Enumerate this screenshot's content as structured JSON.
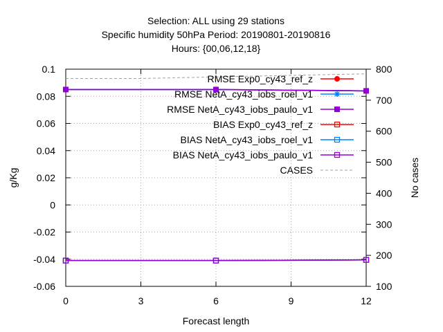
{
  "chart_data": {
    "type": "line",
    "title_lines": [
      "Selection: ALL using    29 stations",
      "Specific humidity 50hPa   Period: 20190801-20190816",
      "Hours: {00,06,12,18}"
    ],
    "xlabel": "Forecast length",
    "ylabel": "g/Kg",
    "y2label": "No cases",
    "xlim": [
      0,
      12
    ],
    "ylim": [
      -0.06,
      0.1
    ],
    "y2lim": [
      100,
      800
    ],
    "xticks": [
      0,
      3,
      6,
      9,
      12
    ],
    "yticks": [
      -0.06,
      -0.04,
      -0.02,
      0,
      0.02,
      0.04,
      0.06,
      0.08,
      0.1
    ],
    "ytick_labels": [
      "-0.06",
      "-0.04",
      "-0.02",
      "0",
      "0.02",
      "0.04",
      "0.06",
      "0.08",
      "0.1"
    ],
    "y2ticks": [
      100,
      200,
      300,
      400,
      500,
      600,
      700,
      800
    ],
    "grid": true,
    "legend_position": "top-right",
    "x": [
      0,
      6,
      12
    ],
    "series": [
      {
        "name": "RMSE Exp0_cy43_ref_z",
        "axis": "y",
        "values": [
          0.085,
          0.085,
          0.084
        ],
        "color": "#ff0000",
        "marker": "filled-circle",
        "dash": "none"
      },
      {
        "name": "RMSE NetA_cy43_iobs_roel_v1",
        "axis": "y",
        "values": [
          0.085,
          0.085,
          0.084
        ],
        "color": "#0080ff",
        "marker": "star",
        "dash": "none"
      },
      {
        "name": "RMSE NetA_cy43_iobs_paulo_v1",
        "axis": "y",
        "values": [
          0.085,
          0.085,
          0.084
        ],
        "color": "#9400d3",
        "marker": "filled-square",
        "dash": "none"
      },
      {
        "name": "BIAS Exp0_cy43_ref_z",
        "axis": "y",
        "values": [
          -0.041,
          -0.041,
          -0.0405
        ],
        "color": "#ff0000",
        "marker": "open-square",
        "dash": "none"
      },
      {
        "name": "BIAS NetA_cy43_iobs_roel_v1",
        "axis": "y",
        "values": [
          -0.041,
          -0.041,
          -0.0405
        ],
        "color": "#0080ff",
        "marker": "open-square",
        "dash": "none"
      },
      {
        "name": "BIAS NetA_cy43_iobs_paulo_v1",
        "axis": "y",
        "values": [
          -0.041,
          -0.041,
          -0.0405
        ],
        "color": "#9400d3",
        "marker": "open-square",
        "dash": "none"
      },
      {
        "name": "CASES",
        "axis": "y2",
        "x": [
          0,
          3,
          6,
          9,
          12
        ],
        "values": [
          770,
          770,
          775,
          780,
          785
        ],
        "color": "#a0a0a0",
        "marker": "none",
        "dash": "dashed"
      }
    ]
  }
}
